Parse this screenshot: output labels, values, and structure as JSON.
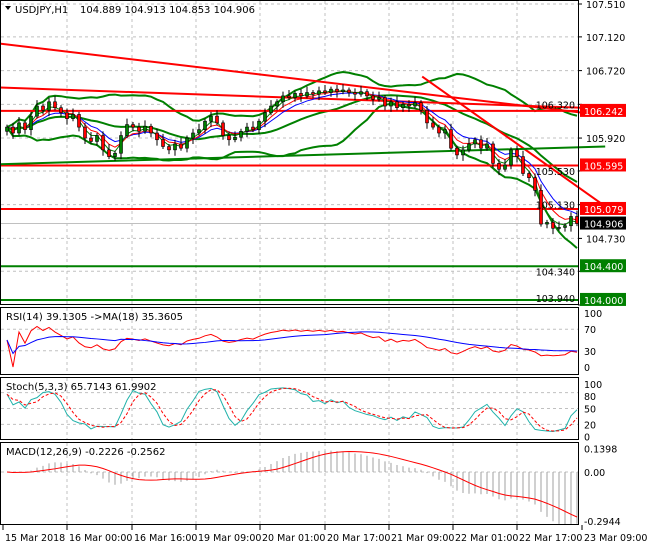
{
  "header": {
    "symbol": "USDJPY,H1",
    "ohlc": "104.889 104.913 104.853 104.906",
    "menu_icon": "triangle-down-icon"
  },
  "indicators": {
    "rsi_label": "RSI(14) 39.1305  ->MA(18) 35.3605",
    "stoch_label": "Stoch(5,3,3) 65.7143 61.9902",
    "macd_label": "MACD(12,26,9) -0.2226 -0.2562"
  },
  "price_axis": {
    "ticks": [
      "107.510",
      "107.120",
      "106.720",
      "106.320",
      "105.920",
      "105.530",
      "105.130",
      "104.730",
      "104.340",
      "103.940"
    ],
    "markers": [
      {
        "value": 106.242,
        "label": "106.242",
        "color": "#ff0000"
      },
      {
        "value": 105.595,
        "label": "105.595",
        "color": "#ff0000"
      },
      {
        "value": 105.079,
        "label": "105.079",
        "color": "#ff0000"
      },
      {
        "value": 104.906,
        "label": "104.906",
        "color": "#000000"
      },
      {
        "value": 104.4,
        "label": "104.400",
        "color": "#008000"
      },
      {
        "value": 104.0,
        "label": "104.000",
        "color": "#008000"
      }
    ]
  },
  "rsi_axis": [
    "100",
    "70",
    "30",
    "0"
  ],
  "stoch_axis": [
    "100",
    "80",
    "50",
    "20",
    "0"
  ],
  "macd_axis": [
    "0.1398",
    "0.00",
    "-0.2944"
  ],
  "time_axis": {
    "labels": [
      "15 Mar 2018",
      "16 Mar 00:00",
      "16 Mar 16:00",
      "19 Mar 09:00",
      "20 Mar 01:00",
      "20 Mar 17:00",
      "21 Mar 09:00",
      "22 Mar 01:00",
      "22 Mar 17:00",
      "23 Mar 09:00"
    ]
  },
  "colors": {
    "bull": "#008000",
    "bear": "#ff0000",
    "bands": "#008000",
    "levels_red": "#ff0000",
    "rsi": "#ff0000",
    "rsi_ma": "#0000ff",
    "stoch_k": "#20b2aa",
    "stoch_d": "#ff0000",
    "macd_hist": "#a0a0a0",
    "macd_signal": "#ff0000"
  },
  "chart_data": [
    {
      "type": "candlestick",
      "symbol": "USDJPY",
      "timeframe": "H1",
      "ylim": [
        103.94,
        107.51
      ],
      "grid": true,
      "closes": [
        106.05,
        105.98,
        106.1,
        106.02,
        106.18,
        106.3,
        106.25,
        106.35,
        106.28,
        106.22,
        106.15,
        106.2,
        106.05,
        105.92,
        105.88,
        105.95,
        105.78,
        105.7,
        105.74,
        105.95,
        106.08,
        106.05,
        106.0,
        106.06,
        105.98,
        105.9,
        105.82,
        105.78,
        105.85,
        105.8,
        105.92,
        105.98,
        106.02,
        106.12,
        106.18,
        106.1,
        105.95,
        105.9,
        105.93,
        106.0,
        106.05,
        106.02,
        106.12,
        106.22,
        106.3,
        106.35,
        106.42,
        106.4,
        106.45,
        106.42,
        106.46,
        106.44,
        106.48,
        106.46,
        106.5,
        106.47,
        106.49,
        106.46,
        106.44,
        106.47,
        106.42,
        106.38,
        106.4,
        106.3,
        106.35,
        106.28,
        106.32,
        106.3,
        106.34,
        106.25,
        106.1,
        106.05,
        105.98,
        106.02,
        105.8,
        105.72,
        105.78,
        105.85,
        105.9,
        105.8,
        105.85,
        105.62,
        105.55,
        105.6,
        105.78,
        105.7,
        105.5,
        105.45,
        105.3,
        104.9,
        104.92,
        104.85,
        104.86,
        104.88,
        104.99,
        104.906
      ],
      "horizontal_levels": [
        {
          "value": 106.242,
          "color": "#ff0000"
        },
        {
          "value": 105.595,
          "color": "#ff0000"
        },
        {
          "value": 105.079,
          "color": "#ff0000"
        },
        {
          "value": 104.4,
          "color": "#008000"
        },
        {
          "value": 104.0,
          "color": "#008000"
        }
      ],
      "trendlines": [
        {
          "from": [
            -1.2,
            107.04
          ],
          "to": [
            99.5,
            106.19
          ],
          "color": "#ff0000"
        },
        {
          "from": [
            -1.2,
            106.52
          ],
          "to": [
            99.5,
            106.27
          ],
          "color": "#ff0000"
        },
        {
          "from": [
            69.2,
            106.65
          ],
          "to": [
            99.7,
            105.11
          ],
          "color": "#ff0000"
        },
        {
          "from": [
            -1.2,
            105.61
          ],
          "to": [
            99.7,
            105.82
          ],
          "color": "#008000"
        }
      ]
    },
    {
      "type": "line",
      "name": "RSI(14)",
      "last": 39.1305,
      "ma_last": 35.3605,
      "ylim": [
        0,
        100
      ],
      "levels": [
        70,
        30
      ]
    },
    {
      "type": "line",
      "name": "Stoch(5,3,3)",
      "k_last": 65.7143,
      "d_last": 61.9902,
      "ylim": [
        0,
        100
      ],
      "levels": [
        80,
        50,
        20
      ]
    },
    {
      "type": "bar",
      "name": "MACD(12,26,9)",
      "macd_last": -0.2226,
      "signal_last": -0.2562,
      "ylim": [
        -0.2944,
        0.1398
      ]
    }
  ]
}
